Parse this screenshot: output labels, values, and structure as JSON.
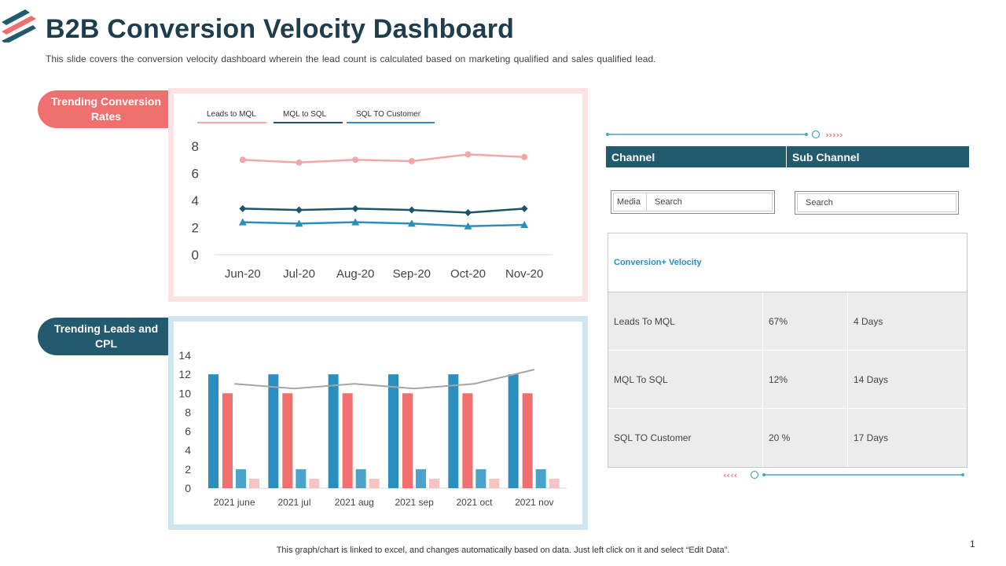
{
  "header": {
    "title": "B2B Conversion Velocity Dashboard",
    "subtitle": "This slide covers the conversion velocity dashboard wherein the lead count is calculated based on marketing qualified and sales qualified lead."
  },
  "sections": {
    "conversion_label": "Trending Conversion Rates",
    "leads_label": "Trending Leads and CPL"
  },
  "colors": {
    "brand_dark": "#225a6e",
    "brand_red": "#f07070",
    "accent_blue": "#2a8fbf",
    "light_pink": "#f2a7a7",
    "teal_dark": "#1d5466"
  },
  "chart_data": [
    {
      "type": "line",
      "categories": [
        "Jun-20",
        "Jul-20",
        "Aug-20",
        "Sep-20",
        "Oct-20",
        "Nov-20"
      ],
      "series": [
        {
          "name": "Leads to MQL",
          "values": [
            7.0,
            6.8,
            7.0,
            6.9,
            7.4,
            7.2
          ],
          "color": "#f2a7a7",
          "marker": "circle"
        },
        {
          "name": "MQL to SQL",
          "values": [
            3.4,
            3.3,
            3.4,
            3.3,
            3.1,
            3.4
          ],
          "color": "#1d5466",
          "marker": "diamond"
        },
        {
          "name": "SQL TO Customer",
          "values": [
            2.4,
            2.3,
            2.4,
            2.3,
            2.1,
            2.2
          ],
          "color": "#2a8fbf",
          "marker": "triangle"
        }
      ],
      "legend_labels": [
        "Leads to MQL",
        "MQL to SQL",
        "SQL TO Customer"
      ],
      "yticks": [
        "0",
        "2",
        "4",
        "6",
        "8"
      ],
      "ylim": [
        0,
        8
      ],
      "legend_position": "top"
    },
    {
      "type": "bar",
      "categories": [
        "2021 june",
        "2021 jul",
        "2021 aug",
        "2021 sep",
        "2021 oct",
        "2021 nov"
      ],
      "series": [
        {
          "values": [
            12,
            12,
            12,
            12,
            12,
            12
          ],
          "color": "#2a8fbf"
        },
        {
          "values": [
            10,
            10,
            10,
            10,
            10,
            10
          ],
          "color": "#f07070"
        },
        {
          "values": [
            2,
            2,
            2,
            2,
            2,
            2
          ],
          "color": "#4aa3c9"
        },
        {
          "values": [
            1,
            1,
            1,
            1,
            1,
            1
          ],
          "color": "#f7c4c4"
        }
      ],
      "line_series": {
        "values": [
          11,
          10.5,
          11,
          10.5,
          11,
          12.5
        ],
        "color": "#a5a5a5"
      },
      "yticks": [
        "0",
        "2",
        "4",
        "6",
        "8",
        "10",
        "12",
        "14"
      ],
      "ylim": [
        0,
        14
      ]
    }
  ],
  "table": {
    "headers": [
      "Channel",
      "Sub Channel"
    ],
    "filter_label": "Media",
    "filter_search": "Search",
    "filter2_search": "Search",
    "title": "Conversion+ Velocity",
    "rows": [
      {
        "stage": "Leads To MQL",
        "pct": "67%",
        "days": "4 Days"
      },
      {
        "stage": "MQL To SQL",
        "pct": "12%",
        "days": "14 Days"
      },
      {
        "stage": "SQL TO Customer",
        "pct": "20 %",
        "days": "17 Days"
      }
    ]
  },
  "footer": {
    "note": "This graph/chart is linked to excel, and changes automatically based on data. Just left click on it and select “Edit Data”.",
    "page_number": "1"
  }
}
